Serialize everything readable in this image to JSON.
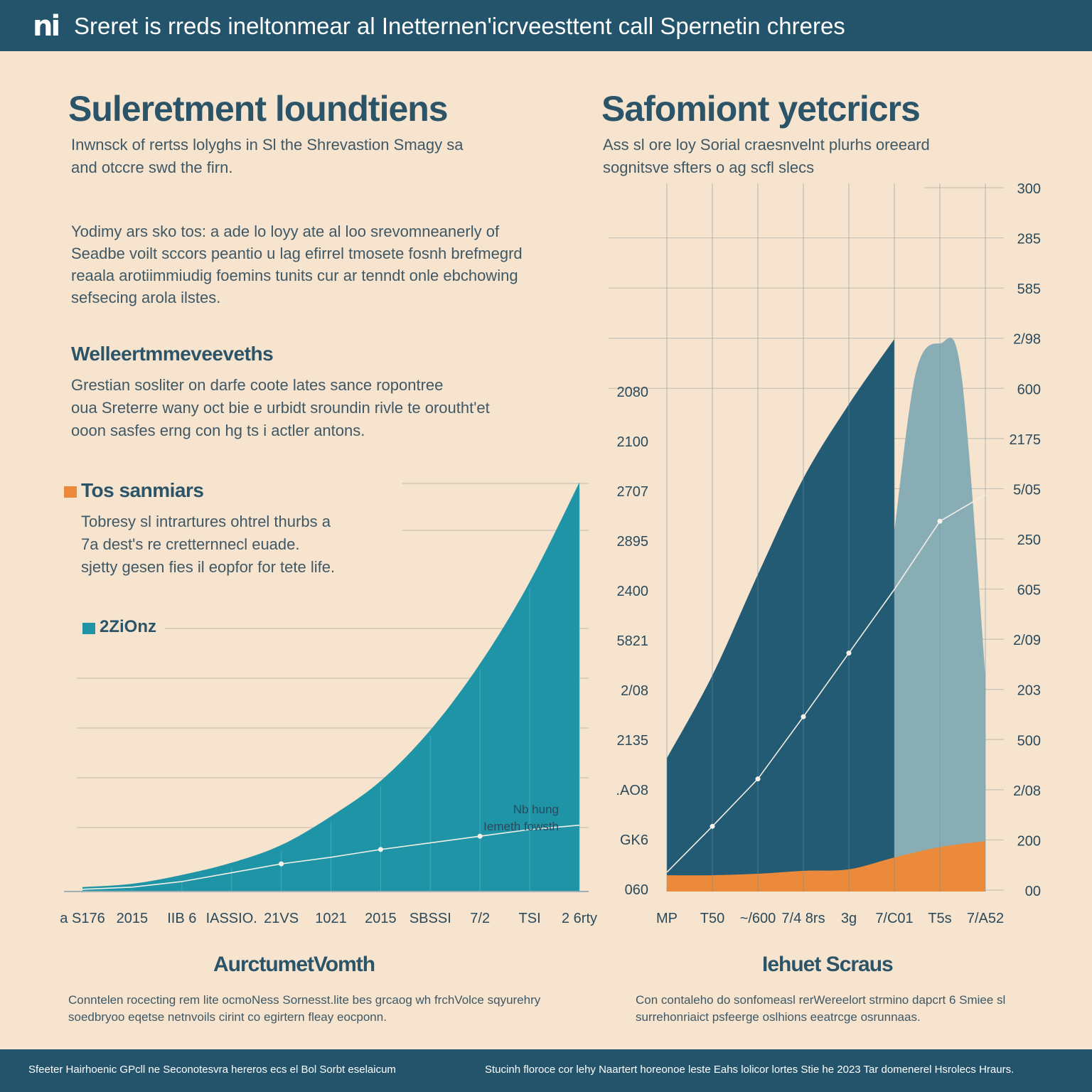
{
  "header": {
    "logo_text": "ni",
    "banner": "Sreret is rreds ineltonmear al Inetternen'icrveesttent call Spernetin chreres"
  },
  "left": {
    "title": "Suleretment loundtiens",
    "intro": [
      "Inwnsck of rertss lolyghs in Sl the Shrevastion Smagy sa",
      "and otccre swd the firn."
    ],
    "para": [
      "Yodimy ars sko tos: a ade lo loyy ate al loo srevomneanerly of",
      "Seadbe voilt sccors peantio u lag efirrel tmosete fosnh brefmegrd",
      "reaala arotiimmiudig foemins tunits cur ar tenndt onle ebchowing",
      "sefsecing arola ilstes."
    ],
    "h3": "Welleertmmeveeveths",
    "para2": [
      "Grestian sosliter on darfe coote lates sance ropontree",
      "oua Sreterre wany oct bie e urbidt sroundin rivle te oroutht'et",
      "ooon sasfes erng con hg ts i actler antons."
    ],
    "legend_label": "Tos sanmiars",
    "legend_text": [
      "Tobresy sl intrartures ohtrel thurbs a",
      "7a dest's re cretternnecl euade.",
      "sjetty gesen fies il eopfor for tete life."
    ],
    "marker_label": "2ZiOnz",
    "note_1": "Nb hung",
    "note_2": "Iemeth fowsth",
    "chart_heading": "AurctumetVomth",
    "caption": [
      "Conntelen rocecting rem lite ocmoNess Sornesst.lite bes grcaog wh frchVolce sqyurehry",
      "soedbryoo eqetse netnvoils cirint co egirtern fleay eocponn."
    ]
  },
  "right": {
    "title": "Safomiont yetcricrs",
    "intro": [
      "Ass sl ore loy Sorial craesnvelnt plurhs oreeard",
      "sognitsve sfters o ag scfl slecs"
    ],
    "chart_heading": "Iehuet Scraus",
    "caption": [
      "Con contaleho do sonfomeasl rerWereelort strmino dapcrt 6 Smiee sl",
      "surrehonriaict psfeerge oslhions eeatrcge osrunnaas."
    ]
  },
  "footer": {
    "left": "Sfeeter Hairhoenic GPcll ne Seconotesvra hereros ecs el Bol Sorbt eselaicum",
    "right": "Stucinh floroce cor lehy Naartert horeonoe leste Eahs lolicor lortes Stie he 2023 Tar domenerel Hsrolecs Hraurs."
  },
  "colors": {
    "background": "#f6e4cf",
    "header_bar": "#23546b",
    "teal_area": "#1f94a6",
    "dark_area": "#235a74",
    "light_area": "#89adb4",
    "orange_area": "#ea8a3a",
    "swatch_orange": "#ea8a3a",
    "swatch_teal": "#1f94a6"
  },
  "chart_data": [
    {
      "type": "area",
      "title": "AurctumetVomth",
      "x_tick_labels": [
        "a S176",
        "2015",
        "IIB 6",
        "IASSIO.",
        "21VS",
        "1021",
        "2015",
        "SBSSI",
        "7/2",
        "TSI",
        "2 6rty"
      ],
      "series": [
        {
          "values": [
            0.2,
            0.35,
            0.75,
            1.3,
            2.1,
            3.4,
            5.0,
            7.3,
            10.3,
            14.0,
            18.5
          ]
        },
        {
          "values": [
            0.1,
            0.2,
            0.45,
            0.85,
            1.25,
            1.55,
            1.9,
            2.2,
            2.5,
            2.8,
            3.0
          ]
        }
      ],
      "ylim": [
        0,
        22.5
      ],
      "grid": true
    },
    {
      "type": "area",
      "title": "Iehuet Scraus",
      "x_tick_labels": [
        "MP",
        "T50",
        "~/600",
        "7/4 8rs",
        "3g",
        "7/C01",
        "T5s",
        "7/A52"
      ],
      "left_tick_labels": [
        "2080",
        "2100",
        "2707",
        "2895",
        "2400",
        "5821",
        "2/08",
        "2135",
        ".AO8",
        "GK6",
        "060"
      ],
      "right_tick_labels": [
        "300",
        "285",
        "585",
        "2/98",
        "600",
        "2175",
        "5/05",
        "250",
        "605",
        "2/09",
        "203",
        "500",
        "2/08",
        "200",
        "00"
      ],
      "series": [
        {
          "values": [
            9.0,
            14.6,
            21.4,
            27.9,
            32.9,
            37.3,
            40.8,
            43.6
          ]
        },
        {
          "values": [
            null,
            null,
            null,
            null,
            null,
            24.3,
            23.5,
            14.6
          ]
        },
        {
          "values": [
            1.1,
            1.1,
            1.2,
            1.4,
            1.5,
            2.3,
            3.0,
            3.4
          ]
        },
        {
          "values": [
            1.3,
            4.4,
            7.6,
            11.8,
            16.1,
            20.4,
            25.0,
            26.8
          ]
        }
      ],
      "ylim": [
        0,
        48
      ],
      "grid": true
    }
  ]
}
